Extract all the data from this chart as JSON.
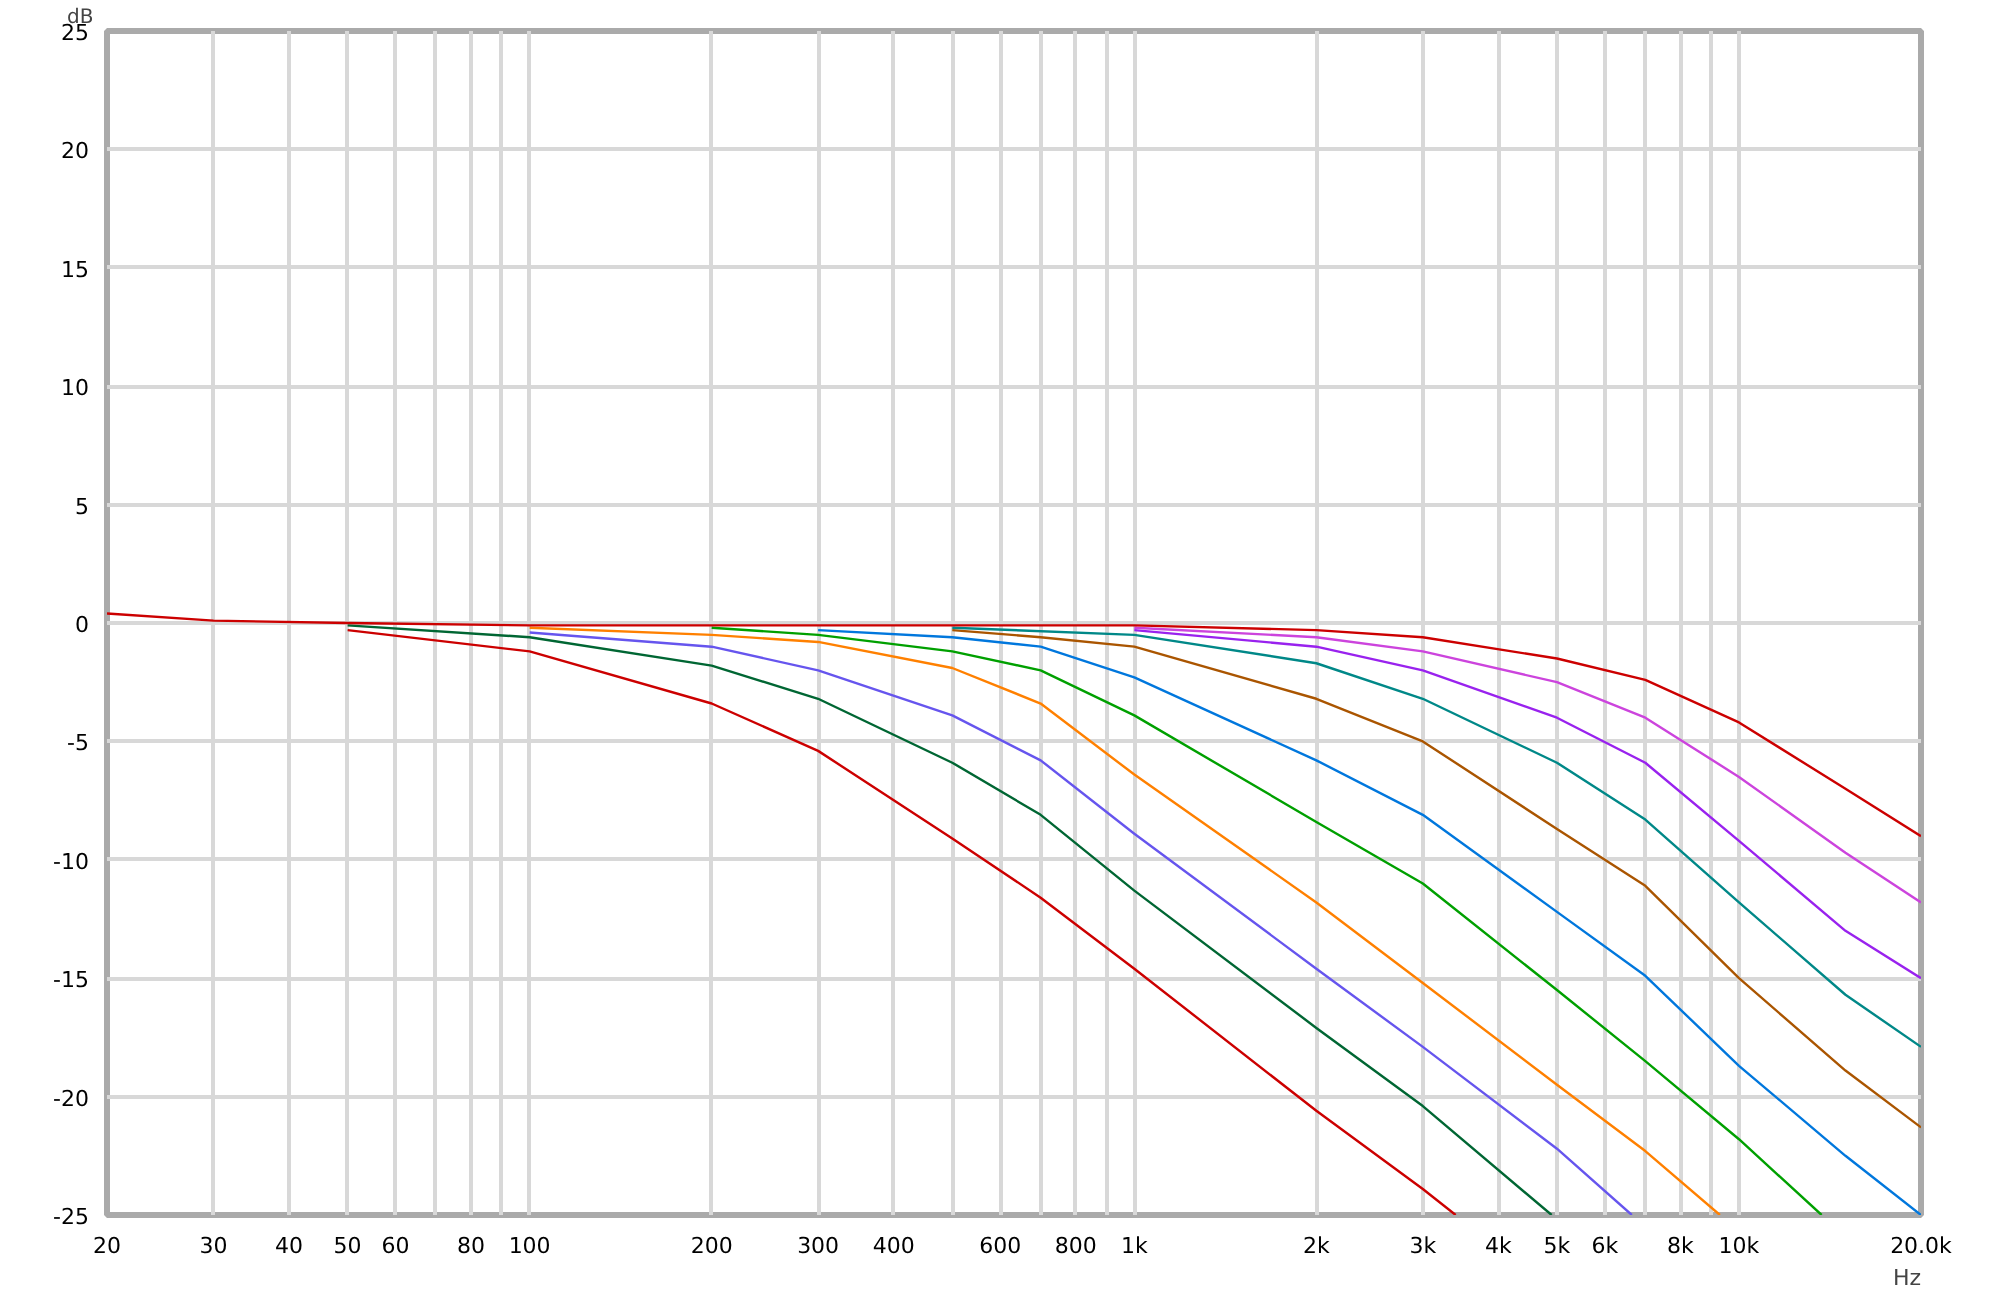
{
  "chart_data": {
    "type": "line",
    "ylabel": "dB",
    "log": "x",
    "grid": true,
    "xlim": [
      20,
      20000
    ],
    "ylim": [
      -25,
      25
    ],
    "xticks": [
      20,
      30,
      40,
      50,
      60,
      {
        "value": 70,
        "label": null
      },
      80,
      {
        "value": 90,
        "label": null
      },
      100,
      200,
      300,
      400,
      {
        "value": 500,
        "label": null
      },
      600,
      {
        "value": 700,
        "label": null
      },
      800,
      {
        "value": 900,
        "label": null
      },
      {
        "value": 1000,
        "label": "1k"
      },
      {
        "value": 2000,
        "label": "2k"
      },
      {
        "value": 3000,
        "label": "3k"
      },
      {
        "value": 4000,
        "label": "4k"
      },
      {
        "value": 5000,
        "label": "5k"
      },
      {
        "value": 6000,
        "label": "6k"
      },
      {
        "value": 7000,
        "label": null
      },
      {
        "value": 8000,
        "label": "8k"
      },
      {
        "value": 9000,
        "label": null
      },
      {
        "value": 10000,
        "label": "10k"
      },
      {
        "value": 20000,
        "label": "20.0k"
      }
    ],
    "xlabel": "Hz",
    "yticks": [
      -25,
      -20,
      -15,
      -10,
      -5,
      0,
      5,
      10,
      15,
      20,
      25
    ],
    "series": [
      {
        "color": "#cc0000",
        "x": [
          50,
          100,
          200,
          300,
          500,
          700,
          1000,
          2000,
          3000,
          3400
        ],
        "values": [
          -0.3,
          -1.2,
          -3.4,
          -5.4,
          -9.1,
          -11.6,
          -14.6,
          -20.6,
          -23.9,
          -25
        ]
      },
      {
        "color": "#006633",
        "x": [
          50,
          100,
          200,
          300,
          500,
          700,
          1000,
          2000,
          3000,
          4900
        ],
        "values": [
          -0.1,
          -0.6,
          -1.8,
          -3.2,
          -5.9,
          -8.1,
          -11.3,
          -17.1,
          -20.4,
          -25
        ]
      },
      {
        "color": "#6655ee",
        "x": [
          100,
          200,
          300,
          500,
          700,
          1000,
          2000,
          3000,
          5000,
          6650
        ],
        "values": [
          -0.4,
          -1.0,
          -2.0,
          -3.9,
          -5.8,
          -8.9,
          -14.6,
          -17.9,
          -22.2,
          -25
        ]
      },
      {
        "color": "#ff8000",
        "x": [
          100,
          200,
          300,
          500,
          700,
          1000,
          2000,
          3000,
          5000,
          7000,
          9300
        ],
        "values": [
          -0.2,
          -0.5,
          -0.8,
          -1.9,
          -3.4,
          -6.4,
          -11.8,
          -15.2,
          -19.5,
          -22.3,
          -25
        ]
      },
      {
        "color": "#00a000",
        "x": [
          200,
          300,
          500,
          700,
          1000,
          2000,
          3000,
          5000,
          7000,
          10000,
          13700
        ],
        "values": [
          -0.2,
          -0.5,
          -1.2,
          -2.0,
          -3.9,
          -8.4,
          -11.0,
          -15.5,
          -18.5,
          -21.8,
          -25
        ]
      },
      {
        "color": "#0077dd",
        "x": [
          300,
          500,
          700,
          1000,
          2000,
          3000,
          5000,
          7000,
          10000,
          15000,
          20000
        ],
        "values": [
          -0.3,
          -0.6,
          -1.0,
          -2.3,
          -5.8,
          -8.1,
          -12.2,
          -14.9,
          -18.7,
          -22.5,
          -25
        ]
      },
      {
        "color": "#aa5500",
        "x": [
          500,
          700,
          1000,
          2000,
          3000,
          5000,
          7000,
          10000,
          15000,
          20000
        ],
        "values": [
          -0.3,
          -0.6,
          -1.0,
          -3.2,
          -5.0,
          -8.7,
          -11.1,
          -15.0,
          -18.9,
          -21.3
        ]
      },
      {
        "color": "#008888",
        "x": [
          500,
          1000,
          2000,
          3000,
          5000,
          7000,
          10000,
          15000,
          20000
        ],
        "values": [
          -0.2,
          -0.5,
          -1.7,
          -3.2,
          -5.9,
          -8.3,
          -11.8,
          -15.7,
          -17.9
        ]
      },
      {
        "color": "#9922ee",
        "x": [
          1000,
          2000,
          3000,
          5000,
          7000,
          10000,
          15000,
          20000
        ],
        "values": [
          -0.3,
          -1.0,
          -2.0,
          -4.0,
          -5.9,
          -9.2,
          -13.0,
          -15.0
        ]
      },
      {
        "color": "#cc44dd",
        "x": [
          1000,
          2000,
          3000,
          5000,
          7000,
          10000,
          15000,
          20000
        ],
        "values": [
          -0.2,
          -0.6,
          -1.2,
          -2.5,
          -4.0,
          -6.5,
          -9.7,
          -11.8
        ]
      },
      {
        "color": "#cc0000",
        "x": [
          20,
          30,
          50,
          100,
          500,
          1000,
          2000,
          3000,
          5000,
          7000,
          10000,
          15000,
          20000
        ],
        "values": [
          0.4,
          0.1,
          0,
          -0.1,
          -0.1,
          -0.1,
          -0.3,
          -0.6,
          -1.5,
          -2.4,
          -4.2,
          -7.0,
          -9.0
        ]
      }
    ]
  }
}
